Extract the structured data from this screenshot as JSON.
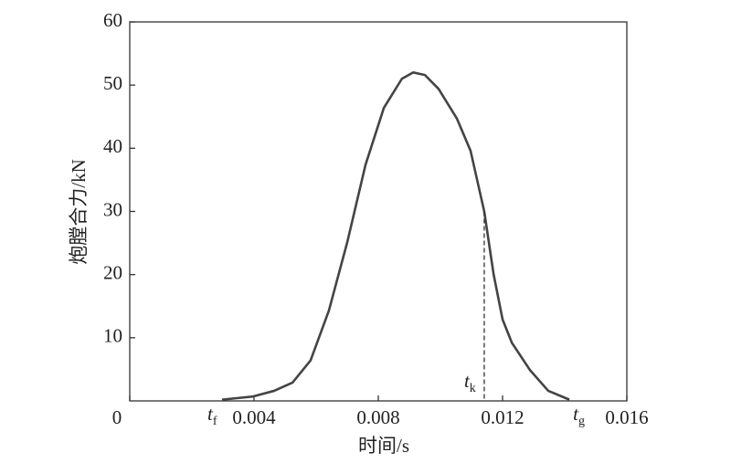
{
  "chart_data": {
    "type": "line",
    "x_label": "时间/s",
    "y_label": "炮膛合力/kN",
    "x": [
      0.00297,
      0.00397,
      0.00465,
      0.00524,
      0.00582,
      0.00641,
      0.007,
      0.00759,
      0.00818,
      0.00876,
      0.00912,
      0.0095,
      0.00994,
      0.01053,
      0.01097,
      0.01141,
      0.01171,
      0.012,
      0.0123,
      0.01288,
      0.01347,
      0.01415
    ],
    "series": [
      {
        "color": "#444444",
        "values": [
          0.2,
          0.7,
          1.6,
          2.9,
          6.4,
          14.3,
          25.1,
          37.4,
          46.4,
          51.0,
          52.0,
          51.6,
          49.4,
          44.7,
          39.6,
          30.0,
          20.1,
          12.9,
          9.2,
          4.9,
          1.6,
          0.2
        ]
      }
    ],
    "xlim": [
      0,
      0.016
    ],
    "xticks": [
      0,
      0.004,
      0.008,
      0.012,
      0.016
    ],
    "ylim": [
      0,
      60
    ],
    "yticks": [
      10,
      20,
      30,
      40,
      50,
      60
    ],
    "annotations": [
      {
        "text": "t",
        "subscript": "f",
        "x": 0.00297
      },
      {
        "text": "t",
        "subscript": "k",
        "x": 0.01141,
        "y": 30.0
      },
      {
        "text": "t",
        "subscript": "g",
        "x": 0.01415
      }
    ]
  }
}
